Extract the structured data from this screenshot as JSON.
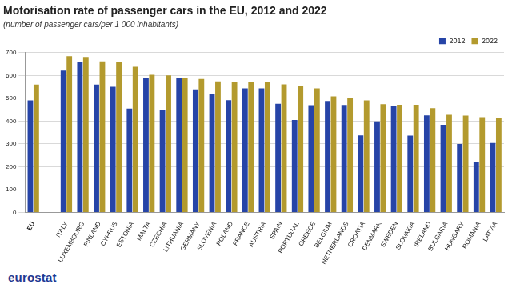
{
  "chart_data": {
    "type": "bar",
    "title": "Motorisation rate of passenger cars in the EU, 2012 and 2022",
    "subtitle": "(number of passenger cars/per 1 000 inhabitants)",
    "footer": "eurostat",
    "categories": [
      "EU",
      null,
      "ITALY",
      "LUXEMBOURG",
      "FINLAND",
      "CYPRUS",
      "ESTONIA",
      "MALTA",
      "CZECHIA",
      "LITHUANIA",
      "GERMANY",
      "SLOVENIA",
      "POLAND",
      "FRANCE",
      "AUSTRIA",
      "SPAIN",
      "PORTUGAL",
      "GREECE",
      "BELGIUM",
      "NETHERLANDS",
      "CROATIA",
      "DENMARK",
      "SWEDEN",
      "SLOVAKIA",
      "IRELAND",
      "BULGARIA",
      "HUNGARY",
      "ROMANIA",
      "LATVIA"
    ],
    "series": [
      {
        "name": "2012",
        "color": "#2644a7",
        "values": [
          491,
          null,
          621,
          661,
          560,
          550,
          455,
          590,
          447,
          591,
          539,
          519,
          492,
          543,
          543,
          476,
          405,
          470,
          488,
          471,
          338,
          399,
          466,
          337,
          425,
          384,
          300,
          222,
          304
        ]
      },
      {
        "name": "2022",
        "color": "#b39a2e",
        "values": [
          560,
          null,
          684,
          681,
          662,
          659,
          638,
          603,
          600,
          589,
          585,
          574,
          571,
          570,
          570,
          561,
          556,
          543,
          508,
          503,
          491,
          474,
          472,
          472,
          457,
          428,
          424,
          417,
          414
        ]
      }
    ],
    "ylim": [
      0,
      700
    ],
    "yticks": [
      0,
      100,
      200,
      300,
      400,
      500,
      600,
      700
    ],
    "grid": true,
    "legend": "top-right"
  }
}
